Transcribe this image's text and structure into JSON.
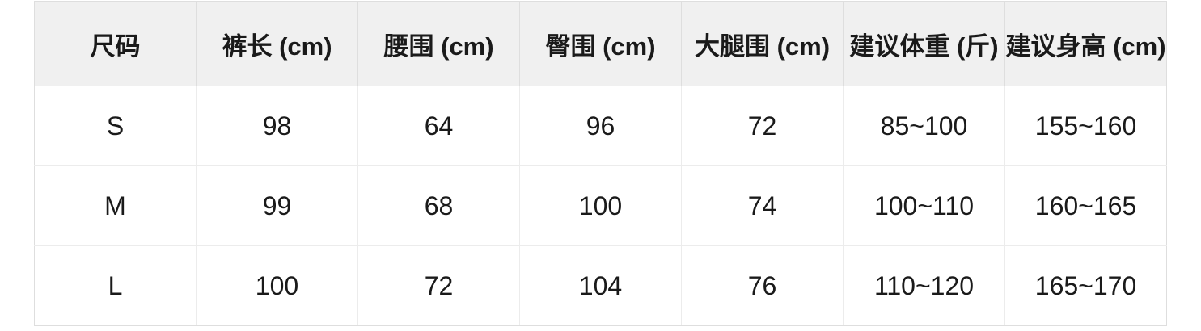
{
  "chart_data": {
    "type": "table",
    "columns": [
      "尺码",
      "裤长 (cm)",
      "腰围 (cm)",
      "臀围 (cm)",
      "大腿围 (cm)",
      "建议体重 (斤)",
      "建议身高 (cm)"
    ],
    "rows": [
      [
        "S",
        "98",
        "64",
        "96",
        "72",
        "85~100",
        "155~160"
      ],
      [
        "M",
        "99",
        "68",
        "100",
        "74",
        "100~110",
        "160~165"
      ],
      [
        "L",
        "100",
        "72",
        "104",
        "76",
        "110~120",
        "165~170"
      ]
    ]
  },
  "colors": {
    "header_bg": "#f0f0f0",
    "border_header": "#dedede",
    "border_body": "#ececec",
    "text": "#1a1a1a"
  }
}
